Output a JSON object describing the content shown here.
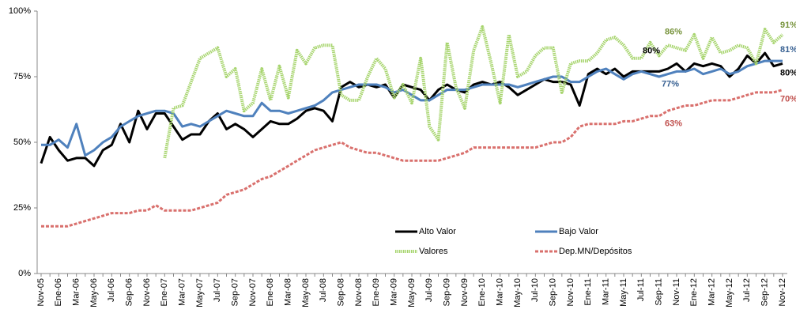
{
  "chart_data": {
    "type": "line",
    "categories": [
      "Nov-05",
      null,
      "Ene-06",
      null,
      "Mar-06",
      null,
      "May-06",
      null,
      "Jul-06",
      null,
      "Sep-06",
      null,
      "Nov-06",
      null,
      "Ene-07",
      null,
      "Mar-07",
      null,
      "May-07",
      null,
      "Jul-07",
      null,
      "Sep-07",
      null,
      "Nov-07",
      null,
      "Ene-08",
      null,
      "Mar-08",
      null,
      "May-08",
      null,
      "Jul-08",
      null,
      "Sep-08",
      null,
      "Nov-08",
      null,
      "Ene-09",
      null,
      "Mar-09",
      null,
      "May-09",
      null,
      "Jul-09",
      null,
      "Sep-09",
      null,
      "Nov-09",
      null,
      "Ene-10",
      null,
      "Mar-10",
      null,
      "May-10",
      null,
      "Jul-10",
      null,
      "Sep-10",
      null,
      "Nov-10",
      null,
      "Ene-11",
      null,
      "Mar-11",
      null,
      "May-11",
      null,
      "Jul-11",
      null,
      "Sep-11",
      null,
      "Nov-11",
      null,
      "Ene-12",
      null,
      "Mar-12",
      null,
      "May-12",
      null,
      "Jul-12",
      null,
      "Sep-12",
      null,
      "Nov-12"
    ],
    "series": [
      {
        "name": "Alto Valor",
        "color": "#000000",
        "label_color": "#000000",
        "dash": false,
        "values": [
          42,
          52,
          47,
          43,
          44,
          44,
          41,
          47,
          49,
          57,
          50,
          62,
          55,
          61,
          61,
          56,
          51,
          53,
          53,
          58,
          61,
          55,
          57,
          55,
          52,
          55,
          58,
          57,
          57,
          59,
          62,
          63,
          62,
          58,
          71,
          73,
          71,
          72,
          71,
          72,
          67,
          72,
          71,
          70,
          66,
          70,
          72,
          70,
          69,
          72,
          73,
          72,
          73,
          71,
          68,
          70,
          72,
          74,
          73,
          73,
          72,
          64,
          76,
          78,
          76,
          78,
          75,
          77,
          77,
          77,
          77,
          78,
          80,
          77,
          80,
          79,
          80,
          79,
          75,
          78,
          83,
          80,
          84,
          79,
          80
        ],
        "value_labels": [
          null,
          null,
          null,
          null,
          null,
          null,
          null,
          null,
          null,
          null,
          null,
          null,
          null,
          null,
          null,
          null,
          null,
          null,
          null,
          null,
          null,
          null,
          null,
          null,
          null,
          null,
          null,
          null,
          null,
          null,
          null,
          null,
          null,
          null,
          null,
          null,
          null,
          null,
          null,
          null,
          null,
          null,
          null,
          null,
          null,
          null,
          null,
          null,
          null,
          null,
          null,
          null,
          null,
          null,
          null,
          null,
          null,
          null,
          null,
          null,
          null,
          null,
          null,
          null,
          null,
          null,
          null,
          null,
          null,
          null,
          null,
          null,
          "80%",
          null,
          null,
          null,
          null,
          null,
          null,
          null,
          null,
          null,
          null,
          null,
          "80%"
        ]
      },
      {
        "name": "Bajo Valor",
        "color": "#4f81bd",
        "label_color": "#376092",
        "dash": false,
        "values": [
          49,
          49,
          51,
          48,
          57,
          45,
          47,
          50,
          52,
          56,
          58,
          60,
          61,
          62,
          62,
          61,
          56,
          57,
          56,
          58,
          60,
          62,
          61,
          60,
          60,
          65,
          62,
          62,
          61,
          62,
          63,
          64,
          66,
          69,
          70,
          71,
          72,
          72,
          72,
          71,
          69,
          70,
          68,
          66,
          66,
          68,
          70,
          70,
          70,
          71,
          72,
          72,
          72,
          72,
          71,
          72,
          73,
          74,
          75,
          75,
          73,
          73,
          75,
          77,
          78,
          76,
          74,
          76,
          77,
          76,
          75,
          76,
          77,
          77,
          78,
          76,
          77,
          78,
          76,
          77,
          79,
          80,
          81,
          81,
          81
        ],
        "value_labels": [
          null,
          null,
          null,
          null,
          null,
          null,
          null,
          null,
          null,
          null,
          null,
          null,
          null,
          null,
          null,
          null,
          null,
          null,
          null,
          null,
          null,
          null,
          null,
          null,
          null,
          null,
          null,
          null,
          null,
          null,
          null,
          null,
          null,
          null,
          null,
          null,
          null,
          null,
          null,
          null,
          null,
          null,
          null,
          null,
          null,
          null,
          null,
          null,
          null,
          null,
          null,
          null,
          null,
          null,
          null,
          null,
          null,
          null,
          null,
          null,
          null,
          null,
          null,
          null,
          null,
          null,
          null,
          null,
          null,
          null,
          null,
          null,
          "77%",
          null,
          null,
          null,
          null,
          null,
          null,
          null,
          null,
          null,
          null,
          null,
          "81%"
        ]
      },
      {
        "name": "Valores",
        "color": "#a6d46c",
        "label_color": "#77933c",
        "dash": false,
        "values": [
          null,
          null,
          null,
          null,
          null,
          null,
          null,
          null,
          null,
          null,
          null,
          null,
          null,
          null,
          44,
          63,
          64,
          73,
          82,
          84,
          86,
          75,
          78,
          62,
          65,
          78,
          66,
          79,
          67,
          85,
          80,
          86,
          87,
          87,
          68,
          66,
          66,
          75,
          82,
          78,
          67,
          72,
          65,
          82,
          56,
          51,
          88,
          71,
          63,
          85,
          94,
          80,
          65,
          91,
          75,
          77,
          83,
          86,
          86,
          69,
          80,
          81,
          81,
          84,
          89,
          90,
          87,
          82,
          82,
          88,
          83,
          87,
          86,
          85,
          91,
          82,
          90,
          84,
          85,
          87,
          86,
          80,
          93,
          88,
          91
        ],
        "value_labels": [
          null,
          null,
          null,
          null,
          null,
          null,
          null,
          null,
          null,
          null,
          null,
          null,
          null,
          null,
          null,
          null,
          null,
          null,
          null,
          null,
          null,
          null,
          null,
          null,
          null,
          null,
          null,
          null,
          null,
          null,
          null,
          null,
          null,
          null,
          null,
          null,
          null,
          null,
          null,
          null,
          null,
          null,
          null,
          null,
          null,
          null,
          null,
          null,
          null,
          null,
          null,
          null,
          null,
          null,
          null,
          null,
          null,
          null,
          null,
          null,
          null,
          null,
          null,
          null,
          null,
          null,
          null,
          null,
          null,
          null,
          null,
          null,
          "86%",
          null,
          null,
          null,
          null,
          null,
          null,
          null,
          null,
          null,
          null,
          null,
          "91%"
        ]
      },
      {
        "name": "Dep.MN/Depósitos",
        "color": "#d9706d",
        "label_color": "#c0504d",
        "dash": true,
        "values": [
          18,
          18,
          18,
          18,
          19,
          20,
          21,
          22,
          23,
          23,
          23,
          24,
          24,
          26,
          24,
          24,
          24,
          24,
          25,
          26,
          27,
          30,
          31,
          32,
          34,
          36,
          37,
          39,
          41,
          43,
          45,
          47,
          48,
          49,
          50,
          48,
          47,
          46,
          46,
          45,
          44,
          43,
          43,
          43,
          43,
          43,
          44,
          45,
          46,
          48,
          48,
          48,
          48,
          48,
          48,
          48,
          48,
          49,
          50,
          50,
          52,
          56,
          57,
          57,
          57,
          57,
          58,
          58,
          59,
          60,
          60,
          62,
          63,
          64,
          64,
          65,
          66,
          66,
          66,
          67,
          68,
          69,
          69,
          69,
          70
        ],
        "value_labels": [
          null,
          null,
          null,
          null,
          null,
          null,
          null,
          null,
          null,
          null,
          null,
          null,
          null,
          null,
          null,
          null,
          null,
          null,
          null,
          null,
          null,
          null,
          null,
          null,
          null,
          null,
          null,
          null,
          null,
          null,
          null,
          null,
          null,
          null,
          null,
          null,
          null,
          null,
          null,
          null,
          null,
          null,
          null,
          null,
          null,
          null,
          null,
          null,
          null,
          null,
          null,
          null,
          null,
          null,
          null,
          null,
          null,
          null,
          null,
          null,
          null,
          null,
          null,
          null,
          null,
          null,
          null,
          null,
          null,
          null,
          null,
          null,
          "63%",
          null,
          null,
          null,
          null,
          null,
          null,
          null,
          null,
          null,
          null,
          null,
          "70%"
        ]
      }
    ],
    "ylim": [
      0,
      100
    ],
    "yticks": [
      {
        "value": 0,
        "label": "0%"
      },
      {
        "value": 25,
        "label": "25%"
      },
      {
        "value": 50,
        "label": "50%"
      },
      {
        "value": 75,
        "label": "75%"
      },
      {
        "value": 100,
        "label": "100%"
      }
    ],
    "grid": false
  }
}
